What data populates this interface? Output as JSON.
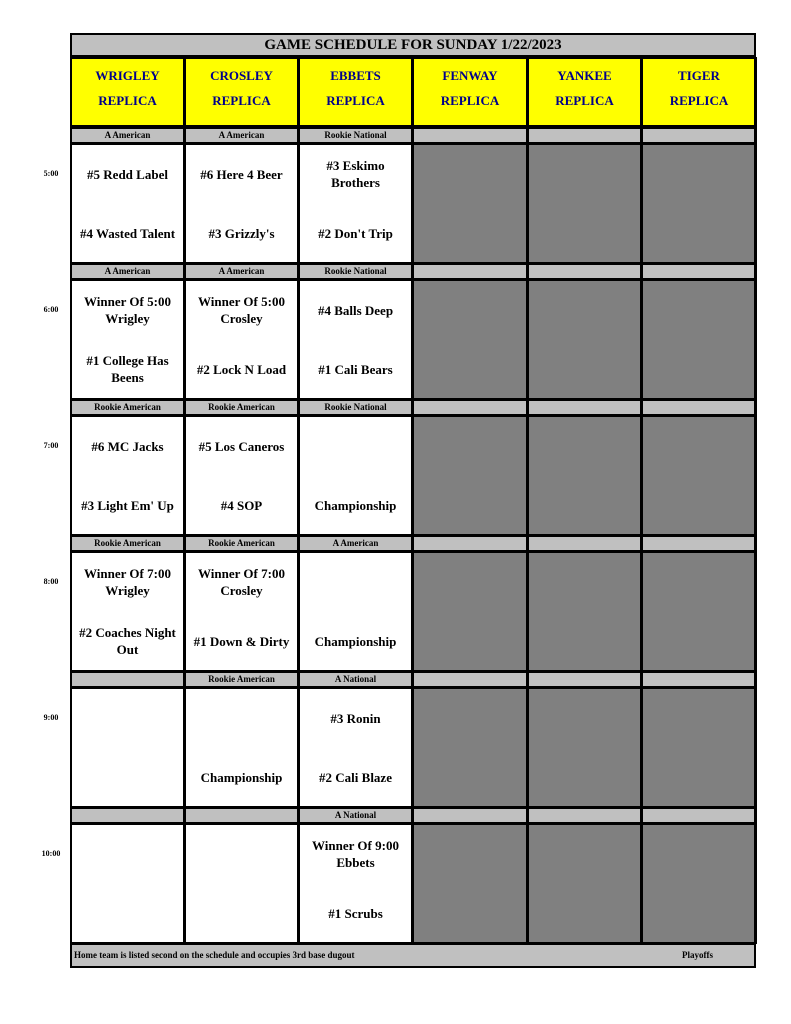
{
  "title": "GAME SCHEDULE FOR SUNDAY 1/22/2023",
  "fields": [
    {
      "name": "WRIGLEY",
      "sub": "REPLICA",
      "active": true
    },
    {
      "name": "CROSLEY",
      "sub": "REPLICA",
      "active": true
    },
    {
      "name": "EBBETS",
      "sub": "REPLICA",
      "active": true
    },
    {
      "name": "FENWAY",
      "sub": "REPLICA",
      "active": false
    },
    {
      "name": "YANKEE",
      "sub": "REPLICA",
      "active": false
    },
    {
      "name": "TIGER",
      "sub": "REPLICA",
      "active": false
    }
  ],
  "slots": [
    {
      "time": "5:00",
      "games": [
        {
          "division": "A American",
          "team1": "#5 Redd Label",
          "team2": "#4 Wasted Talent"
        },
        {
          "division": "A American",
          "team1": "#6 Here 4 Beer",
          "team2": "#3 Grizzly's"
        },
        {
          "division": "Rookie National",
          "team1": "#3 Eskimo Brothers",
          "team2": "#2 Don't Trip"
        }
      ]
    },
    {
      "time": "6:00",
      "games": [
        {
          "division": "A American",
          "team1": "Winner Of 5:00 Wrigley",
          "team2": "#1 College Has Beens"
        },
        {
          "division": "A American",
          "team1": "Winner Of 5:00 Crosley",
          "team2": "#2 Lock N Load"
        },
        {
          "division": "Rookie National",
          "team1": "#4 Balls Deep",
          "team2": "#1 Cali Bears"
        }
      ]
    },
    {
      "time": "7:00",
      "games": [
        {
          "division": "Rookie American",
          "team1": "#6 MC Jacks",
          "team2": "#3 Light Em' Up"
        },
        {
          "division": "Rookie American",
          "team1": "#5 Los Caneros",
          "team2": "#4 SOP"
        },
        {
          "division": "Rookie National",
          "team1": "",
          "team2": "Championship"
        }
      ]
    },
    {
      "time": "8:00",
      "games": [
        {
          "division": "Rookie American",
          "team1": "Winner Of 7:00 Wrigley",
          "team2": "#2 Coaches Night Out"
        },
        {
          "division": "Rookie American",
          "team1": "Winner Of 7:00 Crosley",
          "team2": "#1 Down & Dirty"
        },
        {
          "division": "A American",
          "team1": "",
          "team2": "Championship"
        }
      ]
    },
    {
      "time": "9:00",
      "games": [
        {
          "division": "",
          "team1": "",
          "team2": ""
        },
        {
          "division": "Rookie American",
          "team1": "",
          "team2": "Championship"
        },
        {
          "division": "A National",
          "team1": "#3 Ronin",
          "team2": "#2 Cali Blaze"
        }
      ]
    },
    {
      "time": "10:00",
      "games": [
        {
          "division": "",
          "team1": "",
          "team2": ""
        },
        {
          "division": "",
          "team1": "",
          "team2": ""
        },
        {
          "division": "A National",
          "team1": "Winner Of 9:00 Ebbets",
          "team2": "#1 Scrubs"
        }
      ]
    }
  ],
  "footer": {
    "note": "Home team is listed second on the schedule and occupies 3rd base dugout",
    "label": "Playoffs"
  },
  "colors": {
    "header_bg": "#ffff00",
    "header_text": "#00008b",
    "label_bg": "#c0c0c0",
    "unused_field": "#808080"
  }
}
